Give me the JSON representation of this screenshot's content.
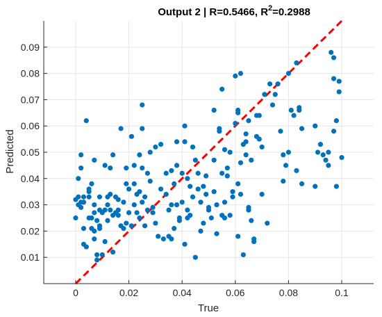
{
  "chart_data": {
    "type": "scatter",
    "title": {
      "prefix": "Output 2 | R=0.5466, R",
      "superscript": "2",
      "suffix": "=0.2988"
    },
    "xlabel": "True",
    "ylabel": "Predicted",
    "xlim": [
      -0.012,
      0.112
    ],
    "ylim": [
      0.0,
      0.1
    ],
    "xticks": [
      0,
      0.02,
      0.04,
      0.06,
      0.08,
      0.1
    ],
    "yticks": [
      0.01,
      0.02,
      0.03,
      0.04,
      0.05,
      0.06,
      0.07,
      0.08,
      0.09
    ],
    "xtick_labels": [
      "0",
      "0.02",
      "0.04",
      "0.06",
      "0.08",
      "0.1"
    ],
    "ytick_labels": [
      "0.01",
      "0.02",
      "0.03",
      "0.04",
      "0.05",
      "0.06",
      "0.07",
      "0.08",
      "0.09"
    ],
    "grid": true,
    "colors": {
      "points": "#0072bd",
      "reference_line": "#ff0000",
      "grid": "#e5e5e5",
      "axes": "#262626"
    },
    "reference_line": {
      "style": "dashed",
      "x": [
        0,
        0.1
      ],
      "y": [
        0,
        0.1
      ]
    },
    "points": [
      [
        0.0,
        0.032
      ],
      [
        0.0,
        0.025
      ],
      [
        0.001,
        0.03
      ],
      [
        0.001,
        0.04
      ],
      [
        0.001,
        0.033
      ],
      [
        0.002,
        0.031
      ],
      [
        0.002,
        0.029
      ],
      [
        0.002,
        0.044
      ],
      [
        0.002,
        0.049
      ],
      [
        0.003,
        0.021
      ],
      [
        0.003,
        0.015
      ],
      [
        0.003,
        0.033
      ],
      [
        0.003,
        0.031
      ],
      [
        0.004,
        0.014
      ],
      [
        0.004,
        0.062
      ],
      [
        0.005,
        0.036
      ],
      [
        0.005,
        0.033
      ],
      [
        0.005,
        0.025
      ],
      [
        0.005,
        0.035
      ],
      [
        0.006,
        0.025
      ],
      [
        0.006,
        0.021
      ],
      [
        0.006,
        0.038
      ],
      [
        0.007,
        0.047
      ],
      [
        0.007,
        0.027
      ],
      [
        0.007,
        0.017
      ],
      [
        0.007,
        0.02
      ],
      [
        0.007,
        0.03
      ],
      [
        0.008,
        0.024
      ],
      [
        0.008,
        0.009
      ],
      [
        0.008,
        0.011
      ],
      [
        0.009,
        0.033
      ],
      [
        0.009,
        0.028
      ],
      [
        0.009,
        0.022
      ],
      [
        0.009,
        0.021
      ],
      [
        0.01,
        0.011
      ],
      [
        0.01,
        0.027
      ],
      [
        0.011,
        0.045
      ],
      [
        0.011,
        0.028
      ],
      [
        0.011,
        0.016
      ],
      [
        0.012,
        0.033
      ],
      [
        0.012,
        0.024
      ],
      [
        0.012,
        0.03
      ],
      [
        0.013,
        0.044
      ],
      [
        0.013,
        0.028
      ],
      [
        0.013,
        0.034
      ],
      [
        0.014,
        0.026
      ],
      [
        0.014,
        0.049
      ],
      [
        0.014,
        0.012
      ],
      [
        0.015,
        0.027
      ],
      [
        0.015,
        0.033
      ],
      [
        0.016,
        0.028
      ],
      [
        0.016,
        0.026
      ],
      [
        0.016,
        0.032
      ],
      [
        0.017,
        0.022
      ],
      [
        0.017,
        0.059
      ],
      [
        0.018,
        0.021
      ],
      [
        0.018,
        0.031
      ],
      [
        0.019,
        0.023
      ],
      [
        0.019,
        0.038
      ],
      [
        0.019,
        0.044
      ],
      [
        0.02,
        0.036
      ],
      [
        0.02,
        0.027
      ],
      [
        0.021,
        0.056
      ],
      [
        0.021,
        0.022
      ],
      [
        0.022,
        0.038
      ],
      [
        0.022,
        0.045
      ],
      [
        0.022,
        0.03
      ],
      [
        0.023,
        0.034
      ],
      [
        0.023,
        0.027
      ],
      [
        0.024,
        0.035
      ],
      [
        0.024,
        0.025
      ],
      [
        0.024,
        0.049
      ],
      [
        0.025,
        0.068
      ],
      [
        0.025,
        0.059
      ],
      [
        0.025,
        0.044
      ],
      [
        0.025,
        0.031
      ],
      [
        0.026,
        0.022
      ],
      [
        0.026,
        0.033
      ],
      [
        0.027,
        0.028
      ],
      [
        0.027,
        0.042
      ],
      [
        0.028,
        0.05
      ],
      [
        0.028,
        0.039
      ],
      [
        0.029,
        0.029
      ],
      [
        0.029,
        0.027
      ],
      [
        0.03,
        0.052
      ],
      [
        0.03,
        0.023
      ],
      [
        0.031,
        0.018
      ],
      [
        0.032,
        0.053
      ],
      [
        0.032,
        0.036
      ],
      [
        0.033,
        0.017
      ],
      [
        0.034,
        0.042
      ],
      [
        0.034,
        0.034
      ],
      [
        0.035,
        0.018
      ],
      [
        0.035,
        0.028
      ],
      [
        0.036,
        0.03
      ],
      [
        0.036,
        0.043
      ],
      [
        0.036,
        0.017
      ],
      [
        0.037,
        0.038
      ],
      [
        0.037,
        0.021
      ],
      [
        0.038,
        0.03
      ],
      [
        0.038,
        0.054
      ],
      [
        0.038,
        0.045
      ],
      [
        0.039,
        0.025
      ],
      [
        0.039,
        0.024
      ],
      [
        0.04,
        0.042
      ],
      [
        0.04,
        0.031
      ],
      [
        0.041,
        0.06
      ],
      [
        0.041,
        0.054
      ],
      [
        0.041,
        0.015
      ],
      [
        0.042,
        0.04
      ],
      [
        0.042,
        0.028
      ],
      [
        0.042,
        0.025
      ],
      [
        0.043,
        0.037
      ],
      [
        0.043,
        0.026
      ],
      [
        0.044,
        0.052
      ],
      [
        0.044,
        0.033
      ],
      [
        0.045,
        0.047
      ],
      [
        0.045,
        0.01
      ],
      [
        0.046,
        0.036
      ],
      [
        0.046,
        0.042
      ],
      [
        0.047,
        0.02
      ],
      [
        0.047,
        0.031
      ],
      [
        0.048,
        0.037
      ],
      [
        0.048,
        0.023
      ],
      [
        0.049,
        0.041
      ],
      [
        0.049,
        0.034
      ],
      [
        0.05,
        0.028
      ],
      [
        0.05,
        0.029
      ],
      [
        0.051,
        0.025
      ],
      [
        0.052,
        0.066
      ],
      [
        0.052,
        0.035
      ],
      [
        0.052,
        0.047
      ],
      [
        0.053,
        0.019
      ],
      [
        0.053,
        0.03
      ],
      [
        0.054,
        0.059
      ],
      [
        0.054,
        0.058
      ],
      [
        0.055,
        0.074
      ],
      [
        0.055,
        0.026
      ],
      [
        0.055,
        0.042
      ],
      [
        0.056,
        0.051
      ],
      [
        0.056,
        0.031
      ],
      [
        0.056,
        0.025
      ],
      [
        0.057,
        0.044
      ],
      [
        0.057,
        0.041
      ],
      [
        0.058,
        0.026
      ],
      [
        0.058,
        0.05
      ],
      [
        0.059,
        0.035
      ],
      [
        0.059,
        0.033
      ],
      [
        0.06,
        0.079
      ],
      [
        0.06,
        0.061
      ],
      [
        0.061,
        0.066
      ],
      [
        0.061,
        0.065
      ],
      [
        0.061,
        0.038
      ],
      [
        0.061,
        0.018
      ],
      [
        0.062,
        0.046
      ],
      [
        0.062,
        0.08
      ],
      [
        0.062,
        0.034
      ],
      [
        0.063,
        0.053
      ],
      [
        0.063,
        0.011
      ],
      [
        0.064,
        0.057
      ],
      [
        0.064,
        0.049
      ],
      [
        0.064,
        0.054
      ],
      [
        0.065,
        0.062
      ],
      [
        0.065,
        0.029
      ],
      [
        0.065,
        0.028
      ],
      [
        0.066,
        0.024
      ],
      [
        0.066,
        0.047
      ],
      [
        0.067,
        0.016
      ],
      [
        0.067,
        0.017
      ],
      [
        0.068,
        0.064
      ],
      [
        0.068,
        0.056
      ],
      [
        0.069,
        0.064
      ],
      [
        0.069,
        0.055
      ],
      [
        0.07,
        0.034
      ],
      [
        0.07,
        0.052
      ],
      [
        0.071,
        0.072
      ],
      [
        0.072,
        0.023
      ],
      [
        0.073,
        0.076
      ],
      [
        0.074,
        0.068
      ],
      [
        0.075,
        0.072
      ],
      [
        0.076,
        0.076
      ],
      [
        0.077,
        0.058
      ],
      [
        0.078,
        0.049
      ],
      [
        0.078,
        0.039
      ],
      [
        0.079,
        0.045
      ],
      [
        0.08,
        0.08
      ],
      [
        0.08,
        0.05
      ],
      [
        0.081,
        0.066
      ],
      [
        0.082,
        0.064
      ],
      [
        0.083,
        0.043
      ],
      [
        0.083,
        0.084
      ],
      [
        0.084,
        0.067
      ],
      [
        0.084,
        0.066
      ],
      [
        0.085,
        0.038
      ],
      [
        0.085,
        0.059
      ],
      [
        0.09,
        0.037
      ],
      [
        0.09,
        0.06
      ],
      [
        0.091,
        0.05
      ],
      [
        0.092,
        0.053
      ],
      [
        0.093,
        0.049
      ],
      [
        0.094,
        0.047
      ],
      [
        0.095,
        0.045
      ],
      [
        0.095,
        0.05
      ],
      [
        0.096,
        0.088
      ],
      [
        0.097,
        0.086
      ],
      [
        0.097,
        0.078
      ],
      [
        0.097,
        0.058
      ],
      [
        0.098,
        0.062
      ],
      [
        0.098,
        0.037
      ],
      [
        0.099,
        0.077
      ],
      [
        0.099,
        0.073
      ],
      [
        0.1,
        0.048
      ]
    ]
  }
}
